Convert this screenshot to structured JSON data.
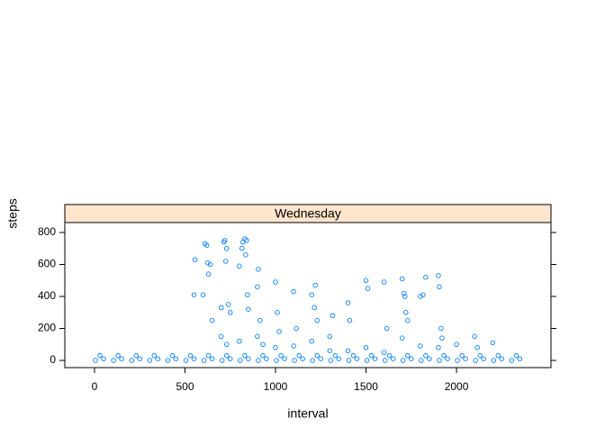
{
  "chart_data": {
    "type": "scatter",
    "panel": "Wednesday",
    "xlabel": "interval",
    "ylabel": "steps",
    "color": "#0080ff",
    "strip_color": "#ffe5cc",
    "xlim": [
      -164,
      2522
    ],
    "ylim": [
      -45,
      862
    ],
    "xticks": [
      0,
      500,
      1000,
      1500,
      2000
    ],
    "yticks": [
      0,
      200,
      400,
      600,
      800
    ],
    "x": [
      5,
      30,
      50,
      105,
      130,
      150,
      205,
      230,
      250,
      305,
      330,
      350,
      405,
      430,
      450,
      505,
      530,
      550,
      605,
      630,
      650,
      705,
      730,
      750,
      805,
      830,
      850,
      905,
      930,
      950,
      1005,
      1030,
      1050,
      1105,
      1130,
      1150,
      1205,
      1230,
      1250,
      1305,
      1330,
      1350,
      1405,
      1430,
      1450,
      1505,
      1530,
      1550,
      1605,
      1630,
      1650,
      1705,
      1730,
      1750,
      1805,
      1830,
      1850,
      1905,
      1930,
      1950,
      2005,
      2030,
      2050,
      2105,
      2130,
      2150,
      2205,
      2230,
      2250,
      2305,
      2330,
      2350,
      550,
      555,
      600,
      610,
      620,
      625,
      630,
      640,
      650,
      700,
      715,
      720,
      725,
      730,
      740,
      750,
      800,
      815,
      820,
      830,
      835,
      840,
      845,
      850,
      900,
      905,
      915,
      930,
      1000,
      1010,
      1020,
      1100,
      1115,
      1200,
      1215,
      1220,
      1230,
      1300,
      1315,
      1400,
      1410,
      1500,
      1510,
      1600,
      1615,
      1700,
      1710,
      1715,
      1720,
      1730,
      1800,
      1815,
      1830,
      1900,
      1905,
      1915,
      1920,
      2000,
      2100,
      2115,
      2200,
      700,
      730,
      800,
      900,
      1000,
      1100,
      1200,
      1300,
      1400,
      1500,
      1600,
      1700,
      1800,
      1900
    ],
    "y": [
      0,
      30,
      10,
      0,
      30,
      10,
      0,
      30,
      10,
      0,
      30,
      10,
      0,
      30,
      10,
      0,
      30,
      10,
      0,
      30,
      10,
      0,
      30,
      10,
      0,
      30,
      10,
      0,
      30,
      10,
      0,
      30,
      10,
      0,
      30,
      10,
      0,
      30,
      10,
      0,
      30,
      10,
      0,
      30,
      10,
      0,
      30,
      10,
      0,
      30,
      10,
      0,
      30,
      10,
      0,
      30,
      10,
      0,
      30,
      10,
      0,
      30,
      10,
      0,
      30,
      10,
      0,
      30,
      10,
      0,
      30,
      10,
      410,
      630,
      410,
      730,
      720,
      610,
      540,
      600,
      250,
      330,
      740,
      750,
      620,
      700,
      350,
      300,
      590,
      700,
      740,
      760,
      660,
      750,
      410,
      320,
      460,
      570,
      250,
      100,
      490,
      300,
      180,
      430,
      200,
      410,
      330,
      470,
      250,
      150,
      280,
      360,
      250,
      500,
      450,
      490,
      200,
      510,
      420,
      400,
      300,
      250,
      400,
      410,
      520,
      530,
      460,
      200,
      140,
      100,
      150,
      80,
      110,
      150,
      100,
      120,
      150,
      80,
      90,
      120,
      60,
      60,
      80,
      50,
      140,
      90,
      80
    ]
  }
}
